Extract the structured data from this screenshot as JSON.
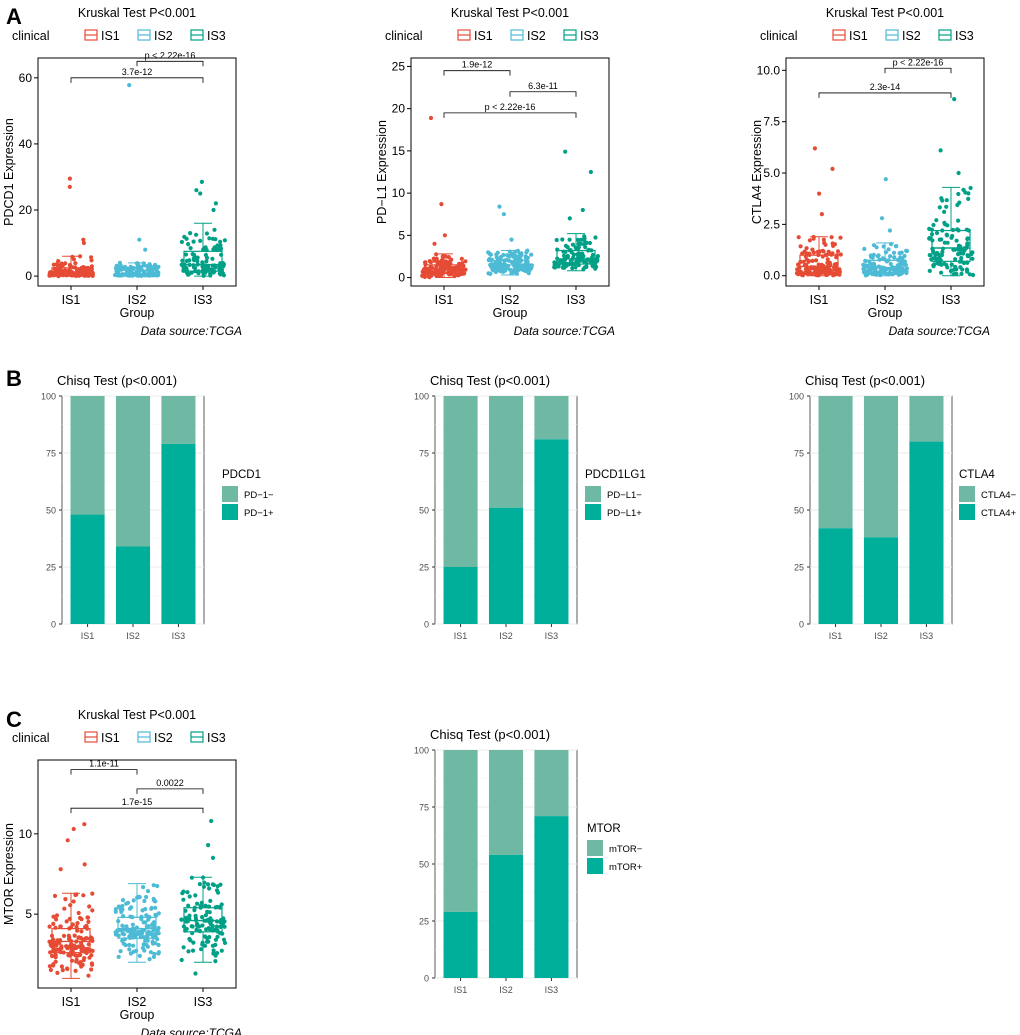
{
  "panel_labels": [
    "A",
    "B",
    "C"
  ],
  "source_text": "Data source:TCGA",
  "legend": {
    "title": "clinical",
    "labels": [
      "IS1",
      "IS2",
      "IS3"
    ]
  },
  "colors": {
    "IS1": "#E64B35",
    "IS2": "#4DBBD5",
    "IS3": "#00A087",
    "neg": "#6FB9A4",
    "pos": "#00AF9A"
  },
  "chart_data": [
    {
      "id": "A1",
      "type": "box",
      "title": "Kruskal Test P<0.001",
      "xlabel": "Group",
      "ylabel": "PDCD1 Expression",
      "categories": [
        "IS1",
        "IS2",
        "IS3"
      ],
      "ylim": [
        -3,
        66
      ],
      "yticks": [
        0,
        20,
        40,
        60
      ],
      "boxes": [
        {
          "min": 0,
          "q1": 0.5,
          "median": 1.2,
          "q3": 2.5,
          "max": 6,
          "outliers": [
            10,
            11,
            27,
            29.5
          ],
          "n": 150
        },
        {
          "min": 0,
          "q1": 0.3,
          "median": 0.7,
          "q3": 1.8,
          "max": 4,
          "outliers": [
            8,
            11,
            57.8
          ],
          "n": 140
        },
        {
          "min": 0,
          "q1": 1.5,
          "median": 3.5,
          "q3": 7.5,
          "max": 16,
          "outliers": [
            20,
            22,
            25,
            26,
            28.5
          ],
          "n": 120
        }
      ],
      "comparisons": [
        {
          "from": 0,
          "to": 2,
          "y": 60,
          "label": "3.7e-12"
        },
        {
          "from": 1,
          "to": 2,
          "y": 65,
          "label": "p < 2.22e-16"
        }
      ]
    },
    {
      "id": "A2",
      "type": "box",
      "title": "Kruskal Test P<0.001",
      "xlabel": "Group",
      "ylabel": "PD−L1 Expression",
      "categories": [
        "IS1",
        "IS2",
        "IS3"
      ],
      "ylim": [
        -1,
        26
      ],
      "yticks": [
        0,
        5,
        10,
        15,
        20,
        25
      ],
      "boxes": [
        {
          "min": 0,
          "q1": 0.5,
          "median": 1.0,
          "q3": 1.5,
          "max": 2.8,
          "outliers": [
            4,
            5,
            8.7,
            18.9
          ],
          "n": 150
        },
        {
          "min": 0.3,
          "q1": 1.0,
          "median": 1.5,
          "q3": 2.0,
          "max": 3.2,
          "outliers": [
            4.5,
            7.5,
            8.4
          ],
          "n": 140
        },
        {
          "min": 0.8,
          "q1": 1.6,
          "median": 2.2,
          "q3": 3.2,
          "max": 5.2,
          "outliers": [
            7,
            8,
            12.5,
            14.9
          ],
          "n": 120
        }
      ],
      "comparisons": [
        {
          "from": 0,
          "to": 1,
          "y": 24.5,
          "label": "1.9e-12"
        },
        {
          "from": 1,
          "to": 2,
          "y": 22,
          "label": "6.3e-11"
        },
        {
          "from": 0,
          "to": 2,
          "y": 19.5,
          "label": "p < 2.22e-16"
        }
      ]
    },
    {
      "id": "A3",
      "type": "box",
      "title": "Kruskal Test P<0.001",
      "xlabel": "Group",
      "ylabel": "CTLA4 Expression",
      "categories": [
        "IS1",
        "IS2",
        "IS3"
      ],
      "ylim": [
        -0.5,
        10.6
      ],
      "yticks": [
        0,
        2.5,
        5,
        7.5,
        10
      ],
      "ytick_labels": [
        "0.0",
        "2.5",
        "5.0",
        "7.5",
        "10.0"
      ],
      "boxes": [
        {
          "min": 0,
          "q1": 0.15,
          "median": 0.45,
          "q3": 1.0,
          "max": 1.9,
          "outliers": [
            3,
            4,
            5.2,
            6.2
          ],
          "n": 150
        },
        {
          "min": 0,
          "q1": 0.15,
          "median": 0.4,
          "q3": 0.75,
          "max": 1.6,
          "outliers": [
            2.2,
            2.8,
            4.7
          ],
          "n": 140
        },
        {
          "min": 0,
          "q1": 0.7,
          "median": 1.35,
          "q3": 2.2,
          "max": 4.3,
          "outliers": [
            5,
            6.1,
            8.6
          ],
          "n": 120
        }
      ],
      "comparisons": [
        {
          "from": 0,
          "to": 2,
          "y": 8.9,
          "label": "2.3e-14"
        },
        {
          "from": 1,
          "to": 2,
          "y": 10.1,
          "label": "p < 2.22e-16"
        }
      ]
    },
    {
      "id": "B1",
      "type": "stacked_bar",
      "title": "Chisq Test (p<0.001)",
      "categories": [
        "IS1",
        "IS2",
        "IS3"
      ],
      "ylim": [
        0,
        100
      ],
      "yticks": [
        0,
        25,
        50,
        75,
        100
      ],
      "legend_title": "PDCD1",
      "legend_labels": [
        "PD−1−",
        "PD−1+"
      ],
      "pos": [
        48,
        34,
        79
      ]
    },
    {
      "id": "B2",
      "type": "stacked_bar",
      "title": "Chisq Test (p<0.001)",
      "categories": [
        "IS1",
        "IS2",
        "IS3"
      ],
      "ylim": [
        0,
        100
      ],
      "yticks": [
        0,
        25,
        50,
        75,
        100
      ],
      "legend_title": "PDCD1LG1",
      "legend_labels": [
        "PD−L1−",
        "PD−L1+"
      ],
      "pos": [
        25,
        51,
        81
      ]
    },
    {
      "id": "B3",
      "type": "stacked_bar",
      "title": "Chisq Test (p<0.001)",
      "categories": [
        "IS1",
        "IS2",
        "IS3"
      ],
      "ylim": [
        0,
        100
      ],
      "yticks": [
        0,
        25,
        50,
        75,
        100
      ],
      "legend_title": "CTLA4",
      "legend_labels": [
        "CTLA4−",
        "CTLA4+"
      ],
      "pos": [
        42,
        38,
        80
      ]
    },
    {
      "id": "C1",
      "type": "box",
      "title": "Kruskal Test P<0.001",
      "xlabel": "Group",
      "ylabel": "MTOR Expression",
      "categories": [
        "IS1",
        "IS2",
        "IS3"
      ],
      "ylim": [
        0.4,
        14.6
      ],
      "yticks": [
        5,
        10
      ],
      "boxes": [
        {
          "min": 1.0,
          "q1": 2.6,
          "median": 3.3,
          "q3": 4.1,
          "max": 6.3,
          "outliers": [
            7.8,
            8.1,
            9.6,
            10.3,
            10.6
          ],
          "n": 150
        },
        {
          "min": 2.0,
          "q1": 3.5,
          "median": 4.1,
          "q3": 4.8,
          "max": 6.9,
          "outliers": [],
          "n": 140
        },
        {
          "min": 2.0,
          "q1": 3.9,
          "median": 4.6,
          "q3": 5.4,
          "max": 7.3,
          "outliers": [
            1.3,
            8.5,
            9.3,
            10.8
          ],
          "n": 120
        }
      ],
      "comparisons": [
        {
          "from": 0,
          "to": 1,
          "y": 14.0,
          "label": "1.1e-11"
        },
        {
          "from": 1,
          "to": 2,
          "y": 12.8,
          "label": "0.0022"
        },
        {
          "from": 0,
          "to": 2,
          "y": 11.6,
          "label": "1.7e-15"
        }
      ]
    },
    {
      "id": "C2",
      "type": "stacked_bar",
      "title": "Chisq Test (p<0.001)",
      "categories": [
        "IS1",
        "IS2",
        "IS3"
      ],
      "ylim": [
        0,
        100
      ],
      "yticks": [
        0,
        25,
        50,
        75,
        100
      ],
      "legend_title": "MTOR",
      "legend_labels": [
        "mTOR−",
        "mTOR+"
      ],
      "pos": [
        29,
        54,
        71
      ]
    }
  ]
}
